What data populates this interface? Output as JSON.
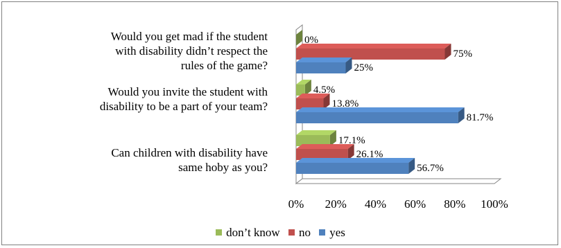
{
  "chart_data": {
    "type": "bar",
    "orientation": "horizontal",
    "categories": [
      "Would you get mad if the student with disability didn’t respect the rules of the game?",
      "Would you invite the student with disability to be a part of your team?",
      "Can children with disability have same hoby as you?"
    ],
    "category_lines": [
      [
        "Would you get mad if the student",
        "with disability didn’t respect the",
        "rules of the game?"
      ],
      [
        "Would you invite the student with",
        "disability to be a part of your team?"
      ],
      [
        "Can children with disability have",
        "same hoby as you?"
      ]
    ],
    "series": [
      {
        "name": "don’t know",
        "color": "#9BBB59",
        "values": [
          0,
          4.5,
          17.1
        ],
        "labels": [
          "0%",
          "4.5%",
          "17.1%"
        ]
      },
      {
        "name": "no",
        "color": "#C0504D",
        "values": [
          75,
          13.8,
          26.1
        ],
        "labels": [
          "75%",
          "13.8%",
          "26.1%"
        ]
      },
      {
        "name": "yes",
        "color": "#4F81BD",
        "values": [
          25,
          81.7,
          56.7
        ],
        "labels": [
          "25%",
          "81.7%",
          "56.7%"
        ]
      }
    ],
    "xlim": [
      0,
      100
    ],
    "xticks": [
      "0%",
      "20%",
      "40%",
      "60%",
      "80%",
      "100%"
    ],
    "grid": false,
    "legend_position": "bottom",
    "style": "3d"
  }
}
